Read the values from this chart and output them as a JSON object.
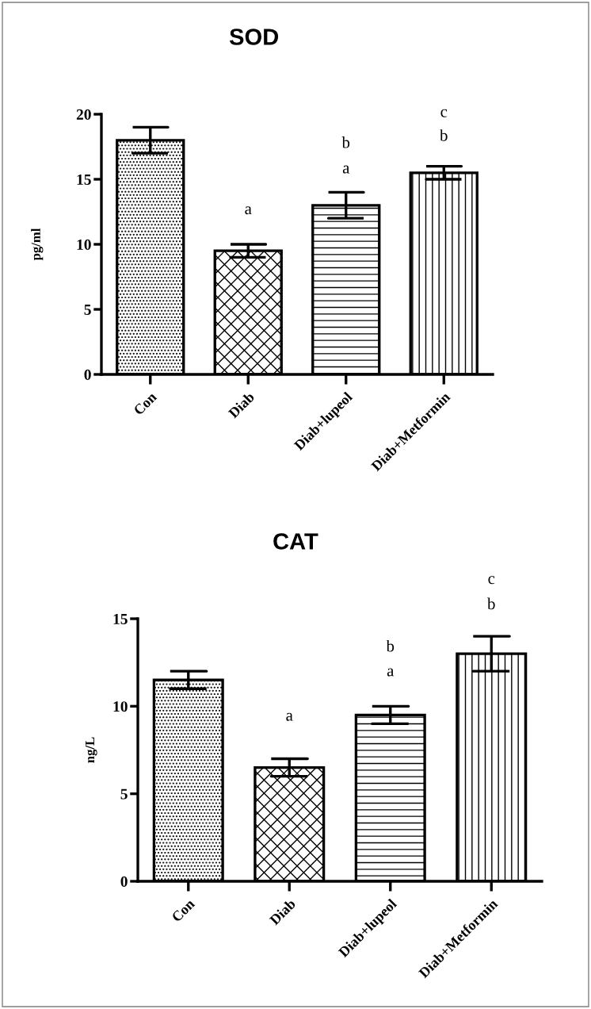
{
  "chart_data": [
    {
      "type": "bar",
      "title": "SOD",
      "ylabel": "pg/ml",
      "categories": [
        "Con",
        "Diab",
        "Diab+lupeol",
        "Diab+Metformin"
      ],
      "values": [
        18,
        9.5,
        13,
        15.5
      ],
      "errors": [
        1,
        0.5,
        1,
        0.5
      ],
      "color": "#000000",
      "ylim": [
        0,
        20
      ],
      "yticks": [
        0,
        5,
        10,
        15,
        20
      ],
      "grid": false,
      "legend": false,
      "annotations": [
        "a",
        "a",
        "b",
        "b",
        "c"
      ]
    },
    {
      "type": "bar",
      "title": "CAT",
      "ylabel": "ng/L",
      "categories": [
        "Con",
        "Diab",
        "Diab+lupeol",
        "Diab+Metformin"
      ],
      "values": [
        11.5,
        6.5,
        9.5,
        13
      ],
      "errors": [
        0.5,
        0.5,
        0.5,
        1
      ],
      "color": "#000000",
      "ylim": [
        0,
        15
      ],
      "yticks": [
        0,
        5,
        10,
        15
      ],
      "grid": false,
      "legend": false,
      "annotations": [
        "a",
        "a",
        "b",
        "b",
        "c"
      ]
    }
  ]
}
